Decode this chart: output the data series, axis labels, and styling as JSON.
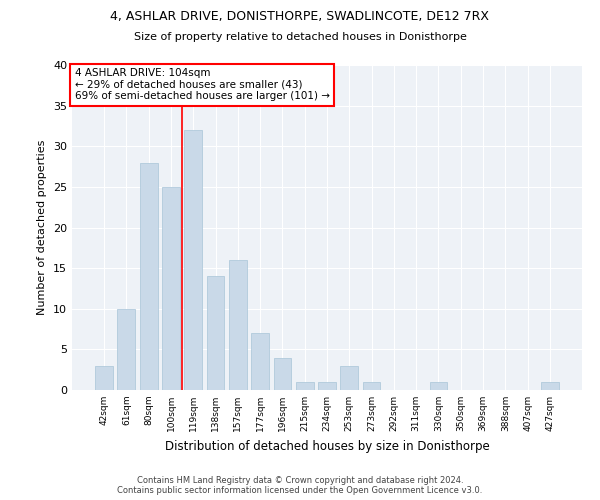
{
  "title_line1": "4, ASHLAR DRIVE, DONISTHORPE, SWADLINCOTE, DE12 7RX",
  "title_line2": "Size of property relative to detached houses in Donisthorpe",
  "xlabel": "Distribution of detached houses by size in Donisthorpe",
  "ylabel": "Number of detached properties",
  "bar_color": "#c9d9e8",
  "bar_edge_color": "#a8c4d8",
  "categories": [
    "42sqm",
    "61sqm",
    "80sqm",
    "100sqm",
    "119sqm",
    "138sqm",
    "157sqm",
    "177sqm",
    "196sqm",
    "215sqm",
    "234sqm",
    "253sqm",
    "273sqm",
    "292sqm",
    "311sqm",
    "330sqm",
    "350sqm",
    "369sqm",
    "388sqm",
    "407sqm",
    "427sqm"
  ],
  "values": [
    3,
    10,
    28,
    25,
    32,
    14,
    16,
    7,
    4,
    1,
    1,
    3,
    1,
    0,
    0,
    1,
    0,
    0,
    0,
    0,
    1
  ],
  "ylim": [
    0,
    40
  ],
  "yticks": [
    0,
    5,
    10,
    15,
    20,
    25,
    30,
    35,
    40
  ],
  "property_line_x": 3.5,
  "annotation_text": "4 ASHLAR DRIVE: 104sqm\n← 29% of detached houses are smaller (43)\n69% of semi-detached houses are larger (101) →",
  "annotation_box_color": "white",
  "annotation_box_edge_color": "red",
  "vline_color": "red",
  "background_color": "#eef2f7",
  "grid_color": "white",
  "footer_line1": "Contains HM Land Registry data © Crown copyright and database right 2024.",
  "footer_line2": "Contains public sector information licensed under the Open Government Licence v3.0."
}
